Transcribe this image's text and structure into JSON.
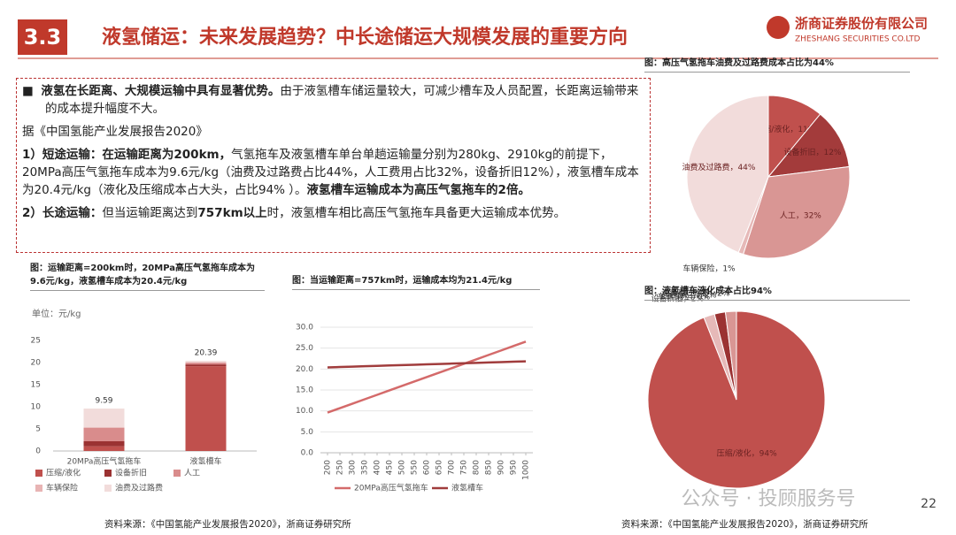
{
  "header": {
    "section": "3.3",
    "title": "液氢储运：未来发展趋势？中长途储运大规模发展的重要方向",
    "company": "浙商证券股份有限公司",
    "company_en": "ZHESHANG SECURITIES CO.LTD"
  },
  "textbox": {
    "paragraphs": [
      {
        "runs": [
          {
            "text": "液氢在长距离、大规模运输中具有显著优势。",
            "bold": true
          },
          {
            "text": "由于液氢槽车储运量较大，可减少槽车及人员配置，长距离运输带来的成本提升幅度不大。",
            "bold": false
          }
        ],
        "bullet": true
      },
      {
        "runs": [
          {
            "text": "据《中国氢能产业发展报告2020》",
            "bold": false
          }
        ],
        "bullet": false
      },
      {
        "runs": [
          {
            "text": "1）短途运输：在运输距离为200km，",
            "bold": true
          },
          {
            "text": "气氢拖车及液氢槽车单台单趟运输量分别为280kg、2910kg的前提下，20MPa高压气氢拖车成本为9.6元/kg（油费及过路费占比44%，人工费用占比32%，设备折旧12%），液氢槽车成本为20.4元/kg（液化及压缩成本占大头，占比94% ）。",
            "bold": false
          },
          {
            "text": "液氢槽车运输成本为高压气氢拖车的2倍。",
            "bold": true
          }
        ],
        "bullet": false
      },
      {
        "runs": [
          {
            "text": "2）长途运输：",
            "bold": true
          },
          {
            "text": "但当运输距离达到",
            "bold": false
          },
          {
            "text": "757km以上",
            "bold": true
          },
          {
            "text": "时，液氢槽车相比高压气氢拖车具备更大运输成本优势。",
            "bold": false
          }
        ],
        "bullet": false
      }
    ]
  },
  "chart_data": [
    {
      "type": "pie",
      "title": "图：高压气氢拖车油费及过路费成本占比为44%",
      "categories": [
        "压缩/液化，11%",
        "设备折旧，12%",
        "人工，32%",
        "车辆保险，1%",
        "油费及过路费，44%"
      ],
      "values": [
        11,
        12,
        32,
        1,
        44
      ],
      "colors": [
        "#c0504d",
        "#a33b3b",
        "#d99694",
        "#e6b9b8",
        "#f2dcdb"
      ]
    },
    {
      "type": "bar",
      "title": "图：运输距离=200km时，20MPa高压气氢拖车成本为9.6元/kg，液氢槽车成本为20.4元/kg",
      "unit": "单位：元/kg",
      "categories": [
        "20MPa高压气氢拖车",
        "液氢槽车"
      ],
      "series": [
        {
          "name": "压缩/液化",
          "color": "#c0504d",
          "values": [
            1.05,
            19.17
          ]
        },
        {
          "name": "设备折旧",
          "color": "#9b3232",
          "values": [
            1.15,
            0.41
          ]
        },
        {
          "name": "人工",
          "color": "#d98c8c",
          "values": [
            3.07,
            0.41
          ]
        },
        {
          "name": "车辆保险",
          "color": "#e8b4b4",
          "values": [
            0.1,
            0
          ]
        },
        {
          "name": "油费及过路费",
          "color": "#f2dcdb",
          "values": [
            4.22,
            0.41
          ]
        }
      ],
      "totals": [
        9.59,
        20.39
      ],
      "ylim": [
        0,
        25
      ],
      "yticks": [
        0,
        5,
        10,
        15,
        20,
        25
      ]
    },
    {
      "type": "line",
      "title": "图：当运输距离=757km时，运输成本均为21.4元/kg",
      "x": [
        200,
        250,
        300,
        350,
        400,
        450,
        500,
        550,
        600,
        650,
        700,
        750,
        800,
        850,
        900,
        950,
        1000
      ],
      "xlim": [
        200,
        1000
      ],
      "xticks": [
        200,
        250,
        300,
        350,
        400,
        450,
        500,
        550,
        600,
        650,
        700,
        750,
        800,
        850,
        900,
        950,
        1000
      ],
      "series": [
        {
          "name": "20MPa高压气氢拖车",
          "color": "#d46a6a",
          "values": [
            9.6,
            10.66,
            11.72,
            12.78,
            13.84,
            14.9,
            15.96,
            17.02,
            18.07,
            19.13,
            20.19,
            21.25,
            22.31,
            23.37,
            24.43,
            25.49,
            26.55
          ]
        },
        {
          "name": "液氢槽车",
          "color": "#a03c3c",
          "values": [
            20.4,
            20.49,
            20.58,
            20.67,
            20.76,
            20.85,
            20.94,
            21.03,
            21.12,
            21.21,
            21.3,
            21.39,
            21.48,
            21.57,
            21.66,
            21.75,
            21.84
          ]
        }
      ],
      "ylim": [
        0,
        30
      ],
      "yticks": [
        {
          "value": 0,
          "label": "0.0"
        },
        {
          "value": 5,
          "label": "5.0"
        },
        {
          "value": 10,
          "label": "10.0"
        },
        {
          "value": 15,
          "label": "15.0"
        },
        {
          "value": 20,
          "label": "20.0"
        },
        {
          "value": 25,
          "label": "25.0"
        },
        {
          "value": 30,
          "label": "30.0"
        }
      ]
    },
    {
      "type": "pie",
      "title": "图：液氢槽车液化成本占比94%",
      "categories": [
        "压缩/液化，94%",
        "设备折旧，2%",
        "车辆保险，0%",
        "人工，2%",
        "油费及过路费，2%"
      ],
      "values": [
        94,
        2,
        0,
        2,
        2
      ],
      "colors": [
        "#c0504d",
        "#e6b9b8",
        "#f2dcdb",
        "#9b3232",
        "#d99694"
      ]
    }
  ],
  "sources": [
    "资料来源：《中国氢能产业发展报告2020》，浙商证券研究所",
    "资料来源：《中国氢能产业发展报告2020》，浙商证券研究所"
  ],
  "watermark": "公众号 · 投顾服务号",
  "page_number": "22"
}
